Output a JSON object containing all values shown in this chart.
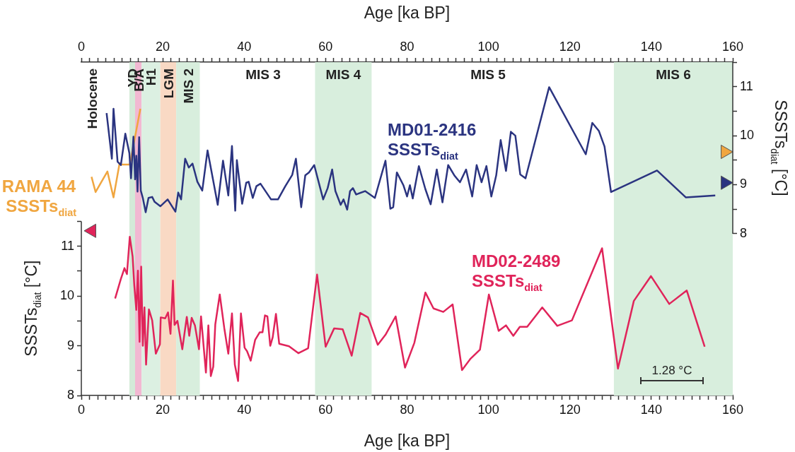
{
  "chart_data": {
    "type": "line",
    "xlabel": "Age [ka BP]",
    "x2label": "Age [ka BP]",
    "ylabel": "SSSTs$_{diat}$ [°C]",
    "y2label": "SSSTs$_{diat}$ [°C]",
    "xlim": [
      0,
      160
    ],
    "x2lim": [
      0,
      160
    ],
    "xticks": [
      0,
      {
        "value": 2,
        "label": null
      },
      {
        "value": 4,
        "label": null
      },
      {
        "value": 6,
        "label": null
      },
      {
        "value": 8,
        "label": null
      },
      {
        "value": 10,
        "label": null
      },
      {
        "value": 12,
        "label": null
      },
      {
        "value": 14,
        "label": null
      },
      {
        "value": 16,
        "label": null
      },
      {
        "value": 18,
        "label": null
      },
      20,
      {
        "value": 22,
        "label": null
      },
      {
        "value": 24,
        "label": null
      },
      {
        "value": 26,
        "label": null
      },
      {
        "value": 28,
        "label": null
      },
      {
        "value": 30,
        "label": null
      },
      {
        "value": 32,
        "label": null
      },
      {
        "value": 34,
        "label": null
      },
      {
        "value": 36,
        "label": null
      },
      {
        "value": 38,
        "label": null
      },
      40,
      {
        "value": 42,
        "label": null
      },
      {
        "value": 44,
        "label": null
      },
      {
        "value": 46,
        "label": null
      },
      {
        "value": 48,
        "label": null
      },
      {
        "value": 50,
        "label": null
      },
      {
        "value": 52,
        "label": null
      },
      {
        "value": 54,
        "label": null
      },
      {
        "value": 56,
        "label": null
      },
      {
        "value": 58,
        "label": null
      },
      60,
      {
        "value": 62,
        "label": null
      },
      {
        "value": 64,
        "label": null
      },
      {
        "value": 66,
        "label": null
      },
      {
        "value": 68,
        "label": null
      },
      {
        "value": 70,
        "label": null
      },
      {
        "value": 72,
        "label": null
      },
      {
        "value": 74,
        "label": null
      },
      {
        "value": 76,
        "label": null
      },
      {
        "value": 78,
        "label": null
      },
      80,
      {
        "value": 82,
        "label": null
      },
      {
        "value": 84,
        "label": null
      },
      {
        "value": 86,
        "label": null
      },
      {
        "value": 88,
        "label": null
      },
      {
        "value": 90,
        "label": null
      },
      {
        "value": 92,
        "label": null
      },
      {
        "value": 94,
        "label": null
      },
      {
        "value": 96,
        "label": null
      },
      {
        "value": 98,
        "label": null
      },
      100,
      {
        "value": 102,
        "label": null
      },
      {
        "value": 104,
        "label": null
      },
      {
        "value": 106,
        "label": null
      },
      {
        "value": 108,
        "label": null
      },
      {
        "value": 110,
        "label": null
      },
      {
        "value": 112,
        "label": null
      },
      {
        "value": 114,
        "label": null
      },
      {
        "value": 116,
        "label": null
      },
      {
        "value": 118,
        "label": null
      },
      120,
      {
        "value": 122,
        "label": null
      },
      {
        "value": 124,
        "label": null
      },
      {
        "value": 126,
        "label": null
      },
      {
        "value": 128,
        "label": null
      },
      {
        "value": 130,
        "label": null
      },
      {
        "value": 132,
        "label": null
      },
      {
        "value": 134,
        "label": null
      },
      {
        "value": 136,
        "label": null
      },
      {
        "value": 138,
        "label": null
      },
      140,
      {
        "value": 142,
        "label": null
      },
      {
        "value": 144,
        "label": null
      },
      {
        "value": 146,
        "label": null
      },
      {
        "value": 148,
        "label": null
      },
      {
        "value": 150,
        "label": null
      },
      {
        "value": 152,
        "label": null
      },
      {
        "value": 154,
        "label": null
      },
      {
        "value": 156,
        "label": null
      },
      {
        "value": 158,
        "label": null
      },
      160
    ],
    "x2ticks": [
      0,
      {
        "value": 2,
        "label": null
      },
      {
        "value": 4,
        "label": null
      },
      {
        "value": 6,
        "label": null
      },
      {
        "value": 8,
        "label": null
      },
      {
        "value": 10,
        "label": null
      },
      {
        "value": 12,
        "label": null
      },
      {
        "value": 14,
        "label": null
      },
      {
        "value": 16,
        "label": null
      },
      {
        "value": 18,
        "label": null
      },
      20,
      {
        "value": 22,
        "label": null
      },
      {
        "value": 24,
        "label": null
      },
      {
        "value": 26,
        "label": null
      },
      {
        "value": 28,
        "label": null
      },
      {
        "value": 30,
        "label": null
      },
      {
        "value": 32,
        "label": null
      },
      {
        "value": 34,
        "label": null
      },
      {
        "value": 36,
        "label": null
      },
      {
        "value": 38,
        "label": null
      },
      40,
      {
        "value": 42,
        "label": null
      },
      {
        "value": 44,
        "label": null
      },
      {
        "value": 46,
        "label": null
      },
      {
        "value": 48,
        "label": null
      },
      {
        "value": 50,
        "label": null
      },
      {
        "value": 52,
        "label": null
      },
      {
        "value": 54,
        "label": null
      },
      {
        "value": 56,
        "label": null
      },
      {
        "value": 58,
        "label": null
      },
      60,
      {
        "value": 62,
        "label": null
      },
      {
        "value": 64,
        "label": null
      },
      {
        "value": 66,
        "label": null
      },
      {
        "value": 68,
        "label": null
      },
      {
        "value": 70,
        "label": null
      },
      {
        "value": 72,
        "label": null
      },
      {
        "value": 74,
        "label": null
      },
      {
        "value": 76,
        "label": null
      },
      {
        "value": 78,
        "label": null
      },
      80,
      {
        "value": 82,
        "label": null
      },
      {
        "value": 84,
        "label": null
      },
      {
        "value": 86,
        "label": null
      },
      {
        "value": 88,
        "label": null
      },
      {
        "value": 90,
        "label": null
      },
      {
        "value": 92,
        "label": null
      },
      {
        "value": 94,
        "label": null
      },
      {
        "value": 96,
        "label": null
      },
      {
        "value": 98,
        "label": null
      },
      100,
      {
        "value": 102,
        "label": null
      },
      {
        "value": 104,
        "label": null
      },
      {
        "value": 106,
        "label": null
      },
      {
        "value": 108,
        "label": null
      },
      {
        "value": 110,
        "label": null
      },
      {
        "value": 112,
        "label": null
      },
      {
        "value": 114,
        "label": null
      },
      {
        "value": 116,
        "label": null
      },
      {
        "value": 118,
        "label": null
      },
      120,
      {
        "value": 122,
        "label": null
      },
      {
        "value": 124,
        "label": null
      },
      {
        "value": 126,
        "label": null
      },
      {
        "value": 128,
        "label": null
      },
      {
        "value": 130,
        "label": null
      },
      {
        "value": 132,
        "label": null
      },
      {
        "value": 134,
        "label": null
      },
      {
        "value": 136,
        "label": null
      },
      {
        "value": 138,
        "label": null
      },
      140,
      {
        "value": 142,
        "label": null
      },
      {
        "value": 144,
        "label": null
      },
      {
        "value": 146,
        "label": null
      },
      {
        "value": 148,
        "label": null
      },
      {
        "value": 150,
        "label": null
      },
      {
        "value": 152,
        "label": null
      },
      {
        "value": 154,
        "label": null
      },
      {
        "value": 156,
        "label": null
      },
      {
        "value": 158,
        "label": null
      },
      160
    ],
    "ylim": [
      8,
      14.7
    ],
    "yticks": [
      8,
      {
        "value": 8.5,
        "label": null
      },
      9,
      {
        "value": 9.5,
        "label": null
      },
      10,
      {
        "value": 10.5,
        "label": null
      },
      11,
      {
        "value": 11.5,
        "label": null
      }
    ],
    "y2lim": [
      4.7,
      11.5
    ],
    "y2ticks": [
      8,
      {
        "value": 8.5,
        "label": null
      },
      9,
      {
        "value": 9.5,
        "label": null
      },
      10,
      {
        "value": 10.5,
        "label": null
      },
      11,
      {
        "value": 11.5,
        "label": null
      }
    ],
    "legend": false,
    "marker": "none",
    "series": [
      {
        "name": "MD01-2416 SSSTs$_{diat}$",
        "color": "#2b3480",
        "axis": "y2",
        "x": [
          6.2,
          7.5,
          7.9,
          8.9,
          9.7,
          10.8,
          11.8,
          12.2,
          12.8,
          13.2,
          13.5,
          13.8,
          14.2,
          14.6,
          15.1,
          15.8,
          16.5,
          17.4,
          18.0,
          19.4,
          21.2,
          23.1,
          23.8,
          24.5,
          25.5,
          26.4,
          27.3,
          28.5,
          29.7,
          31.0,
          33.5,
          34.8,
          36.1,
          37.0,
          37.8,
          38.2,
          39.5,
          40.5,
          41.1,
          42.1,
          43.0,
          44.0,
          46.6,
          48.3,
          50.1,
          51.8,
          52.7,
          54.0,
          55.0,
          55.9,
          57.2,
          59.4,
          60.5,
          61.6,
          62.4,
          63.7,
          64.4,
          65.3,
          66.0,
          66.7,
          67.5,
          69.7,
          72.1,
          74.7,
          75.9,
          76.6,
          77.5,
          79.1,
          80.0,
          80.7,
          81.4,
          82.9,
          84.5,
          85.8,
          87.3,
          88.7,
          90.1,
          91.7,
          93.0,
          94.5,
          96.0,
          97.1,
          98.3,
          99.5,
          100.7,
          101.9,
          103.0,
          104.3,
          105.5,
          106.6,
          107.8,
          109.1,
          114.9,
          123.9,
          125.5,
          127.1,
          128.5,
          130.1,
          141.4,
          148.5,
          155.7
        ],
        "values": [
          10.46,
          9.53,
          10.55,
          9.47,
          9.4,
          10.04,
          9.64,
          9.13,
          9.98,
          9.11,
          9.59,
          8.86,
          9.97,
          8.88,
          8.73,
          8.44,
          8.73,
          8.75,
          8.65,
          8.56,
          8.7,
          8.45,
          8.84,
          8.7,
          9.53,
          9.35,
          9.43,
          9.06,
          8.88,
          9.7,
          8.59,
          9.49,
          8.78,
          9.79,
          8.47,
          9.5,
          8.61,
          9.04,
          9.06,
          8.73,
          8.97,
          9.02,
          8.7,
          8.7,
          8.97,
          9.2,
          9.53,
          8.54,
          9.19,
          9.25,
          9.4,
          8.7,
          8.93,
          9.31,
          8.87,
          8.59,
          8.7,
          8.49,
          8.87,
          8.93,
          8.8,
          8.87,
          8.73,
          9.49,
          8.51,
          8.54,
          9.25,
          8.99,
          8.76,
          8.99,
          8.72,
          9.38,
          8.91,
          8.6,
          9.31,
          8.64,
          9.4,
          9.18,
          9.05,
          9.31,
          8.76,
          9.4,
          9.05,
          9.38,
          8.76,
          9.19,
          9.91,
          9.28,
          10.08,
          10.0,
          9.21,
          9.13,
          10.99,
          9.62,
          10.26,
          10.1,
          9.78,
          8.85,
          9.29,
          8.74,
          8.78
        ]
      },
      {
        "name": "RAMA 44 SSSTs$_{diat}$",
        "color": "#f0a640",
        "axis": "y2",
        "x": [
          2.5,
          3.5,
          6.4,
          7.9,
          9.4,
          9.9,
          11.9,
          14.5
        ],
        "values": [
          9.16,
          8.85,
          9.27,
          8.74,
          9.44,
          9.41,
          9.41,
          10.55
        ]
      },
      {
        "name": "MD02-2489 SSSTs$_{diat}$",
        "color": "#e0245a",
        "x": [
          8.3,
          9.7,
          10.6,
          11.2,
          11.9,
          12.6,
          13.0,
          13.5,
          13.9,
          14.3,
          14.7,
          15.1,
          15.5,
          15.9,
          16.6,
          17.4,
          18.3,
          19.3,
          19.5,
          20.6,
          21.3,
          21.9,
          22.5,
          22.9,
          23.6,
          24.8,
          25.9,
          26.5,
          27.1,
          27.9,
          28.9,
          29.4,
          30.6,
          31.2,
          31.8,
          32.4,
          32.9,
          34.0,
          35.1,
          36.1,
          37.0,
          37.7,
          38.5,
          39.2,
          40.1,
          40.7,
          41.6,
          42.7,
          43.8,
          44.5,
          45.1,
          45.7,
          46.4,
          47.0,
          47.8,
          48.6,
          51.0,
          53.3,
          55.7,
          57.9,
          60.0,
          62.1,
          64.2,
          66.4,
          68.5,
          70.4,
          72.8,
          74.7,
          77.2,
          79.5,
          81.8,
          84.5,
          86.5,
          88.9,
          91.2,
          93.5,
          95.6,
          97.9,
          100.1,
          102.5,
          104.3,
          106.1,
          107.7,
          109.5,
          113.2,
          116.9,
          120.5,
          127.9,
          131.8,
          135.7,
          139.9,
          144.4,
          148.7,
          153.1
        ],
        "values": [
          9.95,
          10.34,
          10.56,
          10.44,
          11.19,
          10.79,
          10.22,
          9.72,
          10.51,
          9.08,
          10.59,
          9.0,
          9.77,
          8.62,
          9.73,
          9.51,
          8.84,
          9.03,
          9.57,
          9.55,
          9.67,
          9.24,
          10.31,
          9.42,
          9.5,
          8.93,
          9.58,
          9.2,
          9.56,
          9.41,
          8.93,
          9.59,
          8.46,
          9.41,
          8.39,
          8.58,
          9.43,
          10.03,
          9.36,
          8.84,
          9.65,
          8.62,
          8.29,
          9.65,
          8.96,
          8.89,
          8.7,
          9.12,
          9.27,
          9.27,
          9.61,
          9.59,
          9.0,
          9.17,
          9.64,
          9.04,
          8.99,
          8.85,
          8.95,
          10.43,
          8.98,
          9.35,
          9.33,
          8.8,
          9.66,
          9.57,
          9.02,
          9.22,
          9.59,
          8.56,
          9.06,
          10.07,
          9.75,
          9.68,
          9.83,
          8.51,
          8.74,
          8.92,
          10.03,
          9.3,
          9.41,
          9.2,
          9.38,
          9.38,
          9.77,
          9.4,
          9.51,
          10.96,
          8.54,
          9.9,
          10.4,
          9.84,
          10.11,
          8.98
        ]
      },
      {
        "type": "scatter",
        "marker": "triangle",
        "color": "#2b3480",
        "axis": "y2",
        "x": [
          158.1
        ],
        "values": [
          9.04
        ]
      },
      {
        "type": "scatter",
        "marker": "triangle",
        "color": "#f0a640",
        "axis": "y2",
        "x": [
          158.1
        ],
        "values": [
          9.67
        ]
      },
      {
        "type": "scatter",
        "marker": "triangle",
        "color": "#e0245a",
        "x": [
          2.6
        ],
        "values": [
          11.31
        ]
      }
    ],
    "bands": [
      {
        "axis": "x",
        "from": 11.8,
        "to": 13.2,
        "label": "YD",
        "color": "#d3ead8"
      },
      {
        "axis": "x",
        "from": 13.2,
        "to": 14.8,
        "label": "B/A",
        "color": "#f2b8d2"
      },
      {
        "axis": "x",
        "from": 14.8,
        "to": 19.4,
        "label": "H1",
        "color": "#dcf0e2"
      },
      {
        "axis": "x",
        "from": 19.4,
        "to": 23.3,
        "label": "LGM",
        "color": "#f9d9c4"
      },
      {
        "axis": "x",
        "from": 23.3,
        "to": 29.1,
        "label": "MIS 2",
        "color": "#d8eedd"
      },
      {
        "axis": "x",
        "from": 57.4,
        "to": 71.3,
        "label": "MIS 4",
        "color": "#d8eedd"
      },
      {
        "axis": "x",
        "from": 130.8,
        "to": 160,
        "label": "MIS 6",
        "color": "#d8eedd"
      }
    ],
    "annotations": [
      "Holocene",
      "MIS 3",
      "MIS 5",
      "1.28 °C"
    ]
  }
}
